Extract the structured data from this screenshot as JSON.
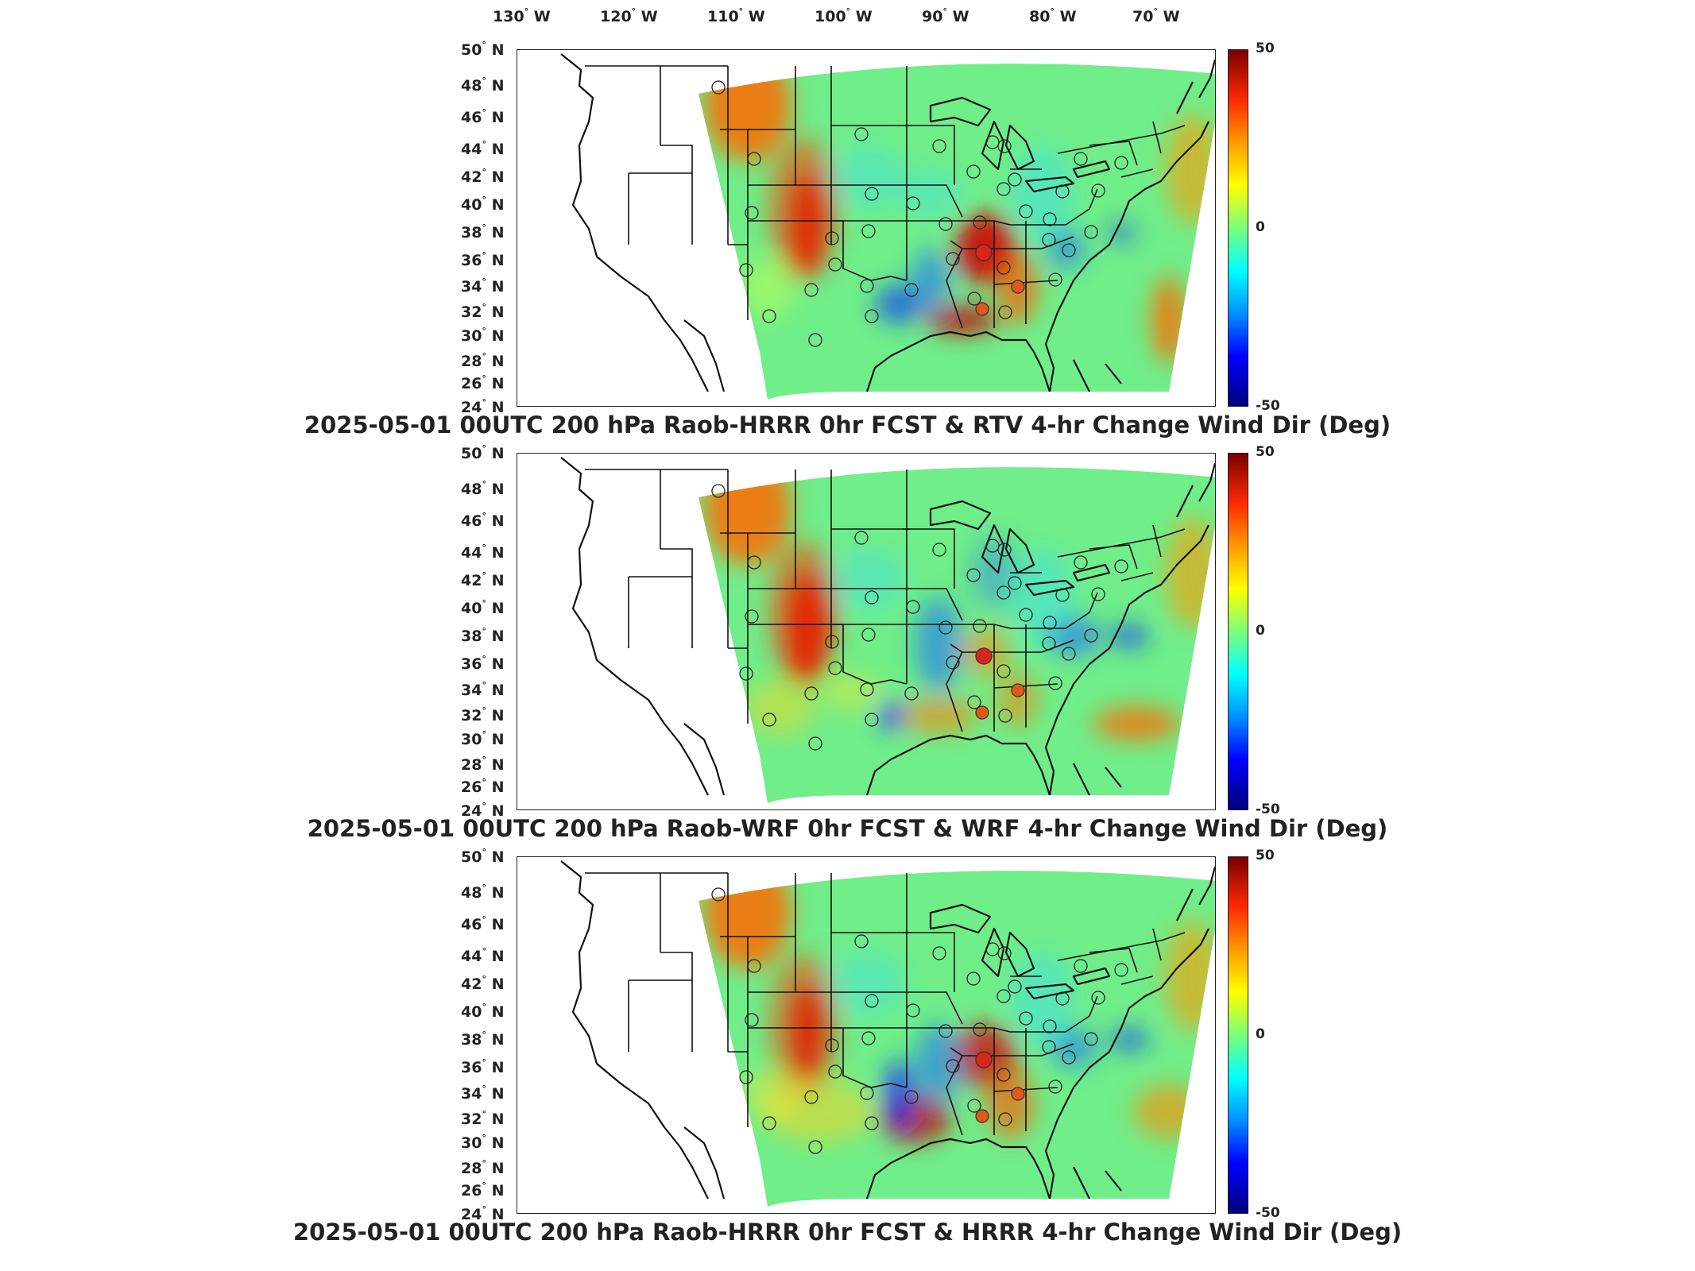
{
  "lon_ticks": [
    "130",
    "120",
    "110",
    "100",
    "90",
    "80",
    "70"
  ],
  "lon_suffix": "W",
  "lat_ticks": [
    "50",
    "48",
    "46",
    "44",
    "42",
    "40",
    "38",
    "36",
    "34",
    "32",
    "30",
    "28",
    "26",
    "24"
  ],
  "lat_suffix": "N",
  "degree_symbol": "°",
  "colorbar": {
    "max": "50",
    "mid": "0",
    "min": "-50"
  },
  "panels": [
    {
      "title": "2025-05-01 00UTC 200 hPa Raob-HRRR 0hr FCST & RTV 4-hr Change Wind Dir (Deg)"
    },
    {
      "title": "2025-05-01 00UTC 200 hPa Raob-WRF 0hr FCST & WRF 4-hr Change Wind Dir (Deg)"
    },
    {
      "title": "2025-05-01 00UTC 200 hPa Raob-HRRR 0hr FCST & HRRR 4-hr Change Wind Dir (Deg)"
    }
  ],
  "colors": {
    "field_background": "#70ee8a",
    "high": "#d40000",
    "low": "#0a2aff"
  }
}
